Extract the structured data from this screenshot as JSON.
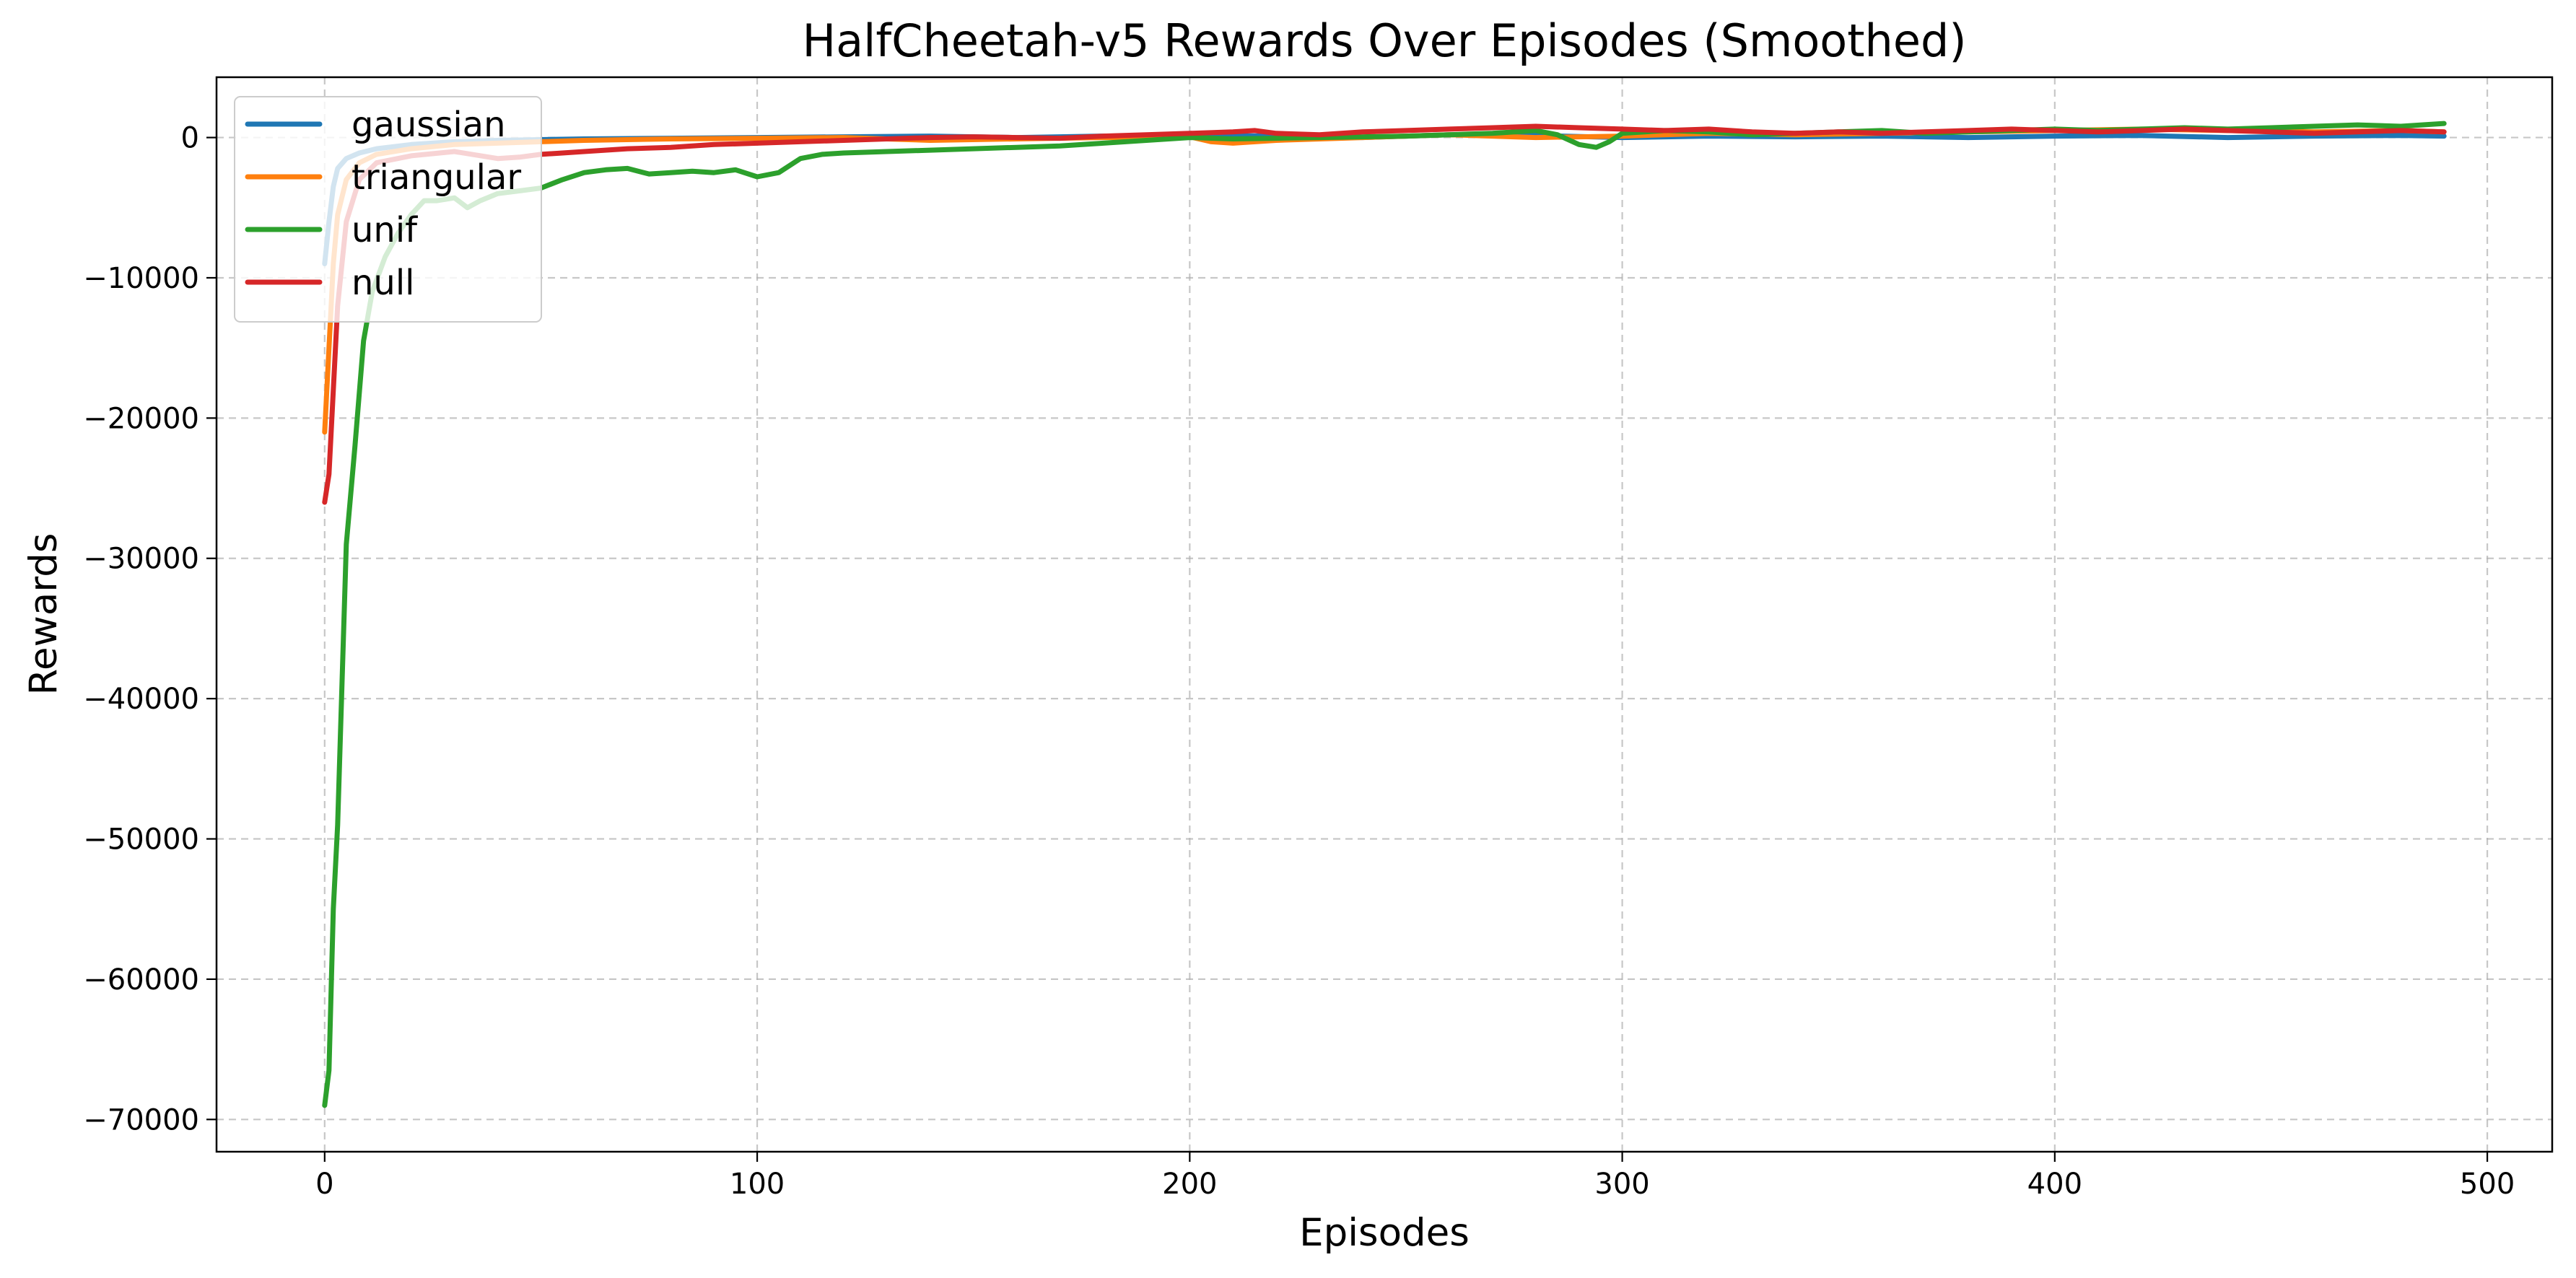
{
  "chart_data": {
    "type": "line",
    "title": "HalfCheetah-v5 Rewards Over Episodes (Smoothed)",
    "xlabel": "Episodes",
    "ylabel": "Rewards",
    "xlim": [
      -25,
      515
    ],
    "ylim": [
      -72300,
      4300
    ],
    "xticks": [
      0,
      100,
      200,
      300,
      400,
      500
    ],
    "yticks": [
      0,
      -10000,
      -20000,
      -30000,
      -40000,
      -50000,
      -60000,
      -70000
    ],
    "xtick_labels": [
      "0",
      "100",
      "200",
      "300",
      "400",
      "500"
    ],
    "ytick_labels": [
      "0",
      "−10000",
      "−20000",
      "−30000",
      "−40000",
      "−50000",
      "−60000",
      "−70000"
    ],
    "grid": true,
    "legend_position": "top-left",
    "series": [
      {
        "name": "gaussian",
        "color": "#1f77b4",
        "x": [
          0,
          1,
          2,
          3,
          5,
          8,
          12,
          20,
          30,
          40,
          50,
          60,
          80,
          100,
          120,
          140,
          160,
          180,
          200,
          220,
          240,
          260,
          280,
          300,
          320,
          340,
          360,
          380,
          400,
          420,
          440,
          460,
          480,
          490
        ],
        "y": [
          -9000,
          -6000,
          -3500,
          -2200,
          -1500,
          -1100,
          -800,
          -500,
          -300,
          -200,
          -150,
          -100,
          -50,
          0,
          50,
          100,
          0,
          100,
          150,
          100,
          0,
          200,
          150,
          0,
          100,
          50,
          100,
          0,
          100,
          150,
          0,
          100,
          150,
          100
        ]
      },
      {
        "name": "triangular",
        "color": "#ff7f0e",
        "x": [
          0,
          1,
          2,
          3,
          5,
          8,
          12,
          20,
          30,
          40,
          50,
          60,
          80,
          100,
          120,
          140,
          160,
          180,
          200,
          205,
          210,
          220,
          240,
          260,
          280,
          300,
          320,
          340,
          360,
          380,
          400,
          420,
          440,
          460,
          480,
          490
        ],
        "y": [
          -21000,
          -15000,
          -9000,
          -5500,
          -3000,
          -1800,
          -1200,
          -800,
          -500,
          -400,
          -300,
          -200,
          -100,
          -50,
          0,
          -200,
          -100,
          0,
          50,
          -300,
          -400,
          -200,
          0,
          200,
          0,
          100,
          300,
          200,
          300,
          400,
          500,
          600,
          500,
          400,
          500,
          400
        ]
      },
      {
        "name": "unif",
        "color": "#2ca02c",
        "x": [
          0,
          1,
          2,
          3,
          4,
          5,
          7,
          9,
          11,
          14,
          17,
          20,
          23,
          26,
          30,
          33,
          36,
          40,
          45,
          50,
          55,
          60,
          65,
          70,
          75,
          80,
          85,
          90,
          95,
          100,
          105,
          110,
          115,
          120,
          130,
          140,
          150,
          160,
          170,
          180,
          190,
          200,
          210,
          220,
          230,
          240,
          250,
          260,
          270,
          280,
          285,
          290,
          294,
          297,
          300,
          310,
          320,
          330,
          340,
          350,
          360,
          370,
          380,
          390,
          400,
          410,
          420,
          430,
          440,
          450,
          460,
          470,
          480,
          490
        ],
        "y": [
          -69000,
          -66500,
          -55000,
          -49000,
          -39000,
          -29000,
          -22000,
          -14500,
          -11000,
          -8500,
          -6800,
          -5500,
          -4500,
          -4500,
          -4300,
          -5000,
          -4500,
          -4000,
          -3800,
          -3600,
          -3000,
          -2500,
          -2300,
          -2200,
          -2600,
          -2500,
          -2400,
          -2500,
          -2300,
          -2800,
          -2500,
          -1500,
          -1200,
          -1100,
          -1000,
          -900,
          -800,
          -700,
          -600,
          -400,
          -200,
          0,
          -100,
          -50,
          0,
          50,
          100,
          200,
          300,
          500,
          200,
          -500,
          -700,
          -300,
          300,
          500,
          400,
          200,
          300,
          400,
          500,
          300,
          400,
          500,
          600,
          500,
          600,
          700,
          600,
          700,
          800,
          900,
          800,
          1000
        ]
      },
      {
        "name": "null",
        "color": "#d62728",
        "x": [
          0,
          1,
          2,
          3,
          5,
          8,
          12,
          20,
          30,
          40,
          45,
          50,
          55,
          60,
          70,
          80,
          90,
          100,
          110,
          120,
          130,
          140,
          150,
          160,
          170,
          180,
          190,
          200,
          210,
          215,
          220,
          230,
          240,
          250,
          260,
          270,
          280,
          290,
          300,
          310,
          320,
          330,
          340,
          350,
          360,
          370,
          380,
          390,
          400,
          410,
          420,
          430,
          440,
          450,
          460,
          470,
          480,
          490
        ],
        "y": [
          -26000,
          -24000,
          -18000,
          -12000,
          -6000,
          -3000,
          -1800,
          -1300,
          -1000,
          -1500,
          -1400,
          -1200,
          -1100,
          -1000,
          -800,
          -700,
          -500,
          -400,
          -300,
          -200,
          -100,
          0,
          50,
          0,
          -50,
          100,
          200,
          300,
          400,
          500,
          300,
          200,
          400,
          500,
          600,
          700,
          800,
          700,
          600,
          500,
          600,
          400,
          300,
          400,
          300,
          400,
          500,
          600,
          500,
          400,
          500,
          600,
          500,
          400,
          300,
          400,
          500,
          400
        ]
      }
    ]
  }
}
